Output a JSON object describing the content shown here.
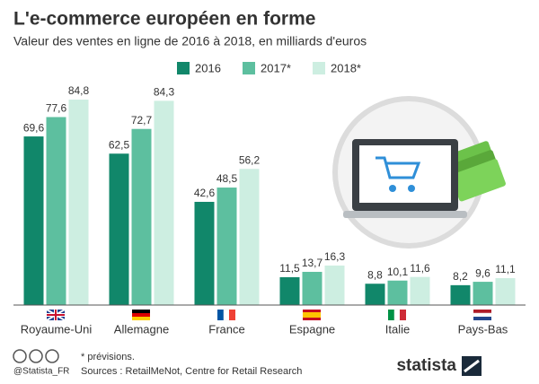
{
  "chart_data": {
    "type": "bar",
    "title": "L'e-commerce européen en forme",
    "subtitle": "Valeur des ventes en ligne de 2016 à 2018, en milliards d'euros",
    "categories": [
      "Royaume-Uni",
      "Allemagne",
      "France",
      "Espagne",
      "Italie",
      "Pays-Bas"
    ],
    "series": [
      {
        "name": "2016",
        "color": "#11876a",
        "values": [
          69.6,
          62.5,
          42.6,
          11.5,
          8.8,
          8.2
        ],
        "value_labels": [
          "69,6",
          "62,5",
          "42,6",
          "11,5",
          "8,8",
          "8,2"
        ]
      },
      {
        "name": "2017*",
        "color": "#5dbf9f",
        "values": [
          77.6,
          72.7,
          48.5,
          13.7,
          10.1,
          9.6
        ],
        "value_labels": [
          "77,6",
          "72,7",
          "48,5",
          "13,7",
          "10,1",
          "9,6"
        ]
      },
      {
        "name": "2018*",
        "color": "#cdeee1",
        "values": [
          84.8,
          84.3,
          56.2,
          16.3,
          11.6,
          11.1
        ],
        "value_labels": [
          "84,8",
          "84,3",
          "56,2",
          "16,3",
          "11,6",
          "11,1"
        ]
      }
    ],
    "ylim": [
      0,
      90
    ],
    "footnote": "* prévisions.",
    "source": "Sources : RetailMeNot, Centre for Retail Research",
    "credit": "@Statista_FR",
    "brand": "statista"
  }
}
